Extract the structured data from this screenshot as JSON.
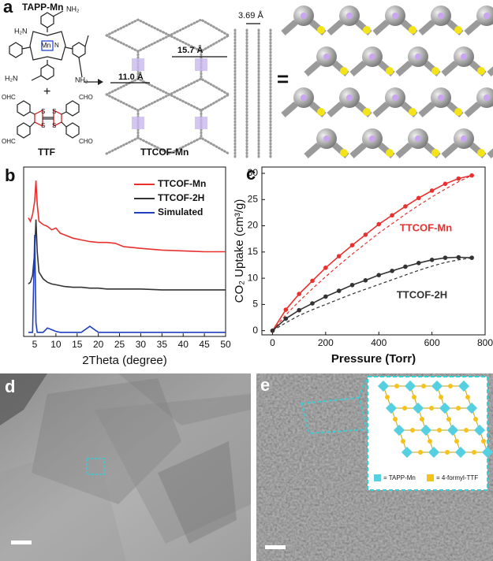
{
  "panel_labels": [
    "a",
    "b",
    "c",
    "d",
    "e"
  ],
  "panel_a": {
    "monomer_1": "TAPP-Mn",
    "plus": "+",
    "monomer_2": "TTF",
    "product": "TTCOF-Mn",
    "pore_long": "15.7 Å",
    "pore_short": "11.0 Å",
    "stacking": "3.69 Å",
    "equals": "=",
    "amine_labels": [
      "H₂N",
      "NH₂",
      "H₂N",
      "NH₂"
    ],
    "metal": "Mn",
    "nitrogen": "N",
    "aldehyde_labels": [
      "OHC",
      "CHO",
      "OHC",
      "CHO"
    ],
    "sulfur_labels": [
      "S",
      "S",
      "S",
      "S"
    ]
  },
  "chart_data": [
    {
      "type": "line",
      "xlabel": "2Theta (degree)",
      "legend": "upper right",
      "x": [
        3.5,
        4,
        4.5,
        5,
        5.3,
        5.6,
        6,
        7,
        8,
        9,
        10,
        11,
        12,
        14,
        16,
        18,
        20,
        22,
        24,
        26,
        30,
        35,
        40,
        45,
        50
      ],
      "xlim": [
        2.4,
        50
      ],
      "xticks": [
        5,
        10,
        15,
        20,
        25,
        30,
        35,
        40,
        45,
        50
      ],
      "ylim": [
        0,
        100
      ],
      "series": [
        {
          "name": "TTCOF-Mn",
          "color": "#e8312f",
          "values": [
            70,
            68,
            72,
            80,
            92,
            78,
            68,
            66,
            65,
            63,
            64,
            61,
            60,
            58,
            57,
            56,
            55.5,
            55.5,
            55,
            53,
            52,
            51,
            50.5,
            50,
            50
          ]
        },
        {
          "name": "TTCOF-2H",
          "color": "#333333",
          "values": [
            31,
            32,
            36,
            50,
            69,
            50,
            38,
            34,
            32,
            31,
            30.5,
            30,
            29.5,
            29,
            29,
            28.5,
            28.5,
            28,
            28,
            28,
            28,
            27.5,
            27.5,
            27.5,
            27.5
          ]
        },
        {
          "name": "Simulated",
          "color": "#1f3fbf",
          "values": [
            2.4,
            2.4,
            2.4,
            60,
            8,
            2.4,
            2.4,
            2.4,
            5,
            4,
            3,
            2.4,
            2.4,
            2.4,
            2.4,
            6,
            2.4,
            2.4,
            2.4,
            2.4,
            2.4,
            2.4,
            2.4,
            2.4,
            2.4
          ]
        }
      ]
    },
    {
      "type": "line",
      "xlabel": "Pressure (Torr)",
      "ylabel": "CO₂ Uptake (cm³/g)",
      "x": [
        0,
        50,
        100,
        150,
        200,
        250,
        300,
        350,
        400,
        450,
        500,
        550,
        600,
        650,
        700,
        750
      ],
      "xlim": [
        -40,
        800
      ],
      "xticks": [
        0,
        200,
        400,
        600,
        800
      ],
      "ylim": [
        -0.8,
        31.2
      ],
      "yticks": [
        0,
        5,
        10,
        15,
        20,
        25,
        30
      ],
      "series": [
        {
          "color": "#e8312f",
          "style": "solid",
          "markers": true,
          "values": [
            0,
            4,
            7,
            9.5,
            12,
            14.2,
            16.3,
            18.3,
            20.3,
            22,
            23.7,
            25.3,
            26.7,
            28,
            29,
            29.6
          ]
        },
        {
          "color": "#e8312f",
          "style": "dashed",
          "markers": false,
          "values": [
            0,
            3,
            5.6,
            8,
            10.3,
            12.5,
            14.6,
            16.6,
            18.6,
            20.4,
            22.2,
            23.9,
            25.5,
            27,
            28.4,
            29.6
          ]
        },
        {
          "color": "#333333",
          "style": "solid",
          "markers": true,
          "values": [
            0,
            2.3,
            3.9,
            5.2,
            6.5,
            7.6,
            8.7,
            9.6,
            10.6,
            11.4,
            12.2,
            12.9,
            13.5,
            13.9,
            14,
            13.9
          ]
        },
        {
          "color": "#333333",
          "style": "dashed",
          "markers": false,
          "values": [
            0,
            1.5,
            2.9,
            4,
            5,
            6,
            7,
            7.9,
            8.8,
            9.7,
            10.6,
            11.5,
            12.3,
            13,
            13.5,
            13.9
          ]
        }
      ],
      "annotations": [
        {
          "text": "TTCOF-Mn",
          "color": "#e8312f"
        },
        {
          "text": "TTCOF-2H",
          "color": "#333333"
        }
      ]
    }
  ],
  "panel_e": {
    "legend": [
      "= TAPP-Mn",
      "= 4-formyl-TTF"
    ]
  }
}
